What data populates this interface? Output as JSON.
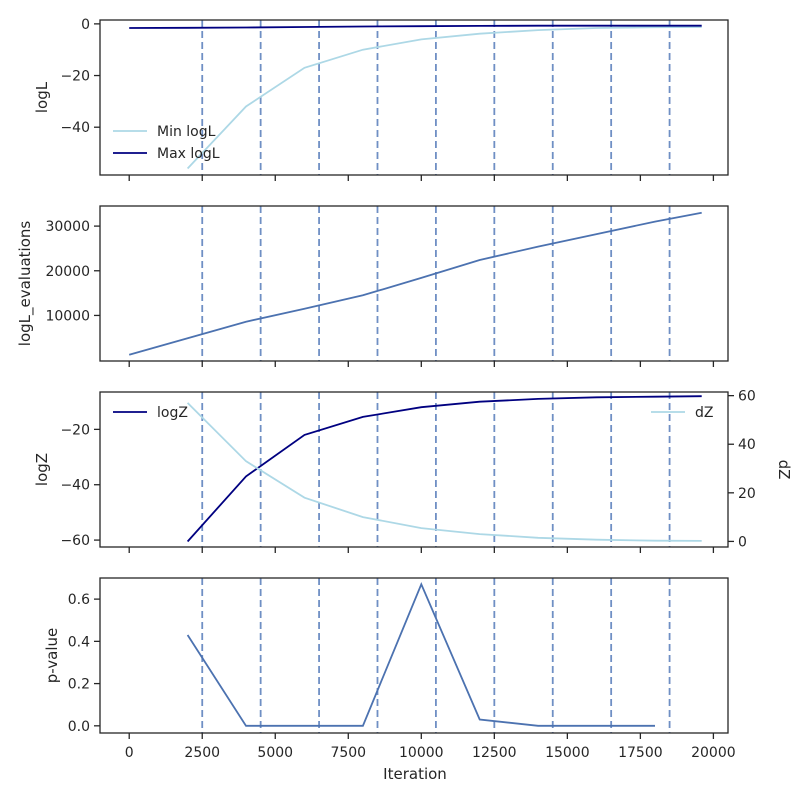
{
  "chart_data": [
    {
      "type": "line",
      "xlim": [
        -1000,
        20500
      ],
      "ylim": [
        -58.5,
        1.5
      ],
      "ylabel": "logL",
      "yticks": [
        0,
        -20,
        -40
      ],
      "vlines": [
        2500,
        4500,
        6500,
        8500,
        10500,
        12500,
        14500,
        16500,
        18500
      ],
      "legend": "left",
      "series": [
        {
          "name": "Min logL",
          "color": "#add8e6",
          "x": [
            2000,
            4000,
            6000,
            8000,
            10000,
            12000,
            14000,
            16000,
            18000,
            19600
          ],
          "y": [
            -56,
            -32,
            -17,
            -10,
            -6,
            -3.8,
            -2.4,
            -1.6,
            -1.3,
            -1.2
          ]
        },
        {
          "name": "Max logL",
          "color": "#000080",
          "x": [
            0,
            2000,
            4000,
            6000,
            8000,
            10000,
            12000,
            14000,
            16000,
            18000,
            19600
          ],
          "y": [
            -1.6,
            -1.5,
            -1.4,
            -1.2,
            -1.0,
            -0.9,
            -0.8,
            -0.7,
            -0.7,
            -0.7,
            -0.7
          ]
        }
      ]
    },
    {
      "type": "line",
      "xlim": [
        -1000,
        20500
      ],
      "ylim": [
        -200,
        34500
      ],
      "ylabel": "logL_evaluations",
      "yticks": [
        10000,
        20000,
        30000
      ],
      "vlines": [
        2500,
        4500,
        6500,
        8500,
        10500,
        12500,
        14500,
        16500,
        18500
      ],
      "series": [
        {
          "name": "",
          "color": "#4c72b0",
          "x": [
            0,
            2000,
            4000,
            6000,
            8000,
            10000,
            12000,
            14000,
            16000,
            18000,
            19600
          ],
          "y": [
            1200,
            4900,
            8600,
            11500,
            14500,
            18400,
            22400,
            25400,
            28200,
            31000,
            33000
          ]
        }
      ]
    },
    {
      "type": "line",
      "xlim": [
        -1000,
        20500
      ],
      "ylim": [
        -62.5,
        -6.5
      ],
      "ylabel": "logZ",
      "yticks": [
        -20,
        -40,
        -60
      ],
      "y2lim": [
        -2.3,
        61.5
      ],
      "y2label": "dZ",
      "y2ticks": [
        0,
        20,
        40,
        60
      ],
      "vlines": [
        2500,
        4500,
        6500,
        8500,
        10500,
        12500,
        14500,
        16500,
        18500
      ],
      "series": [
        {
          "name": "logZ",
          "axis": "left",
          "color": "#000080",
          "x": [
            2000,
            4000,
            6000,
            8000,
            10000,
            12000,
            14000,
            16000,
            18000,
            19600
          ],
          "y": [
            -60.5,
            -37,
            -22,
            -15.5,
            -12,
            -10,
            -9,
            -8.4,
            -8.2,
            -8
          ]
        },
        {
          "name": "dZ",
          "axis": "right",
          "color": "#add8e6",
          "x": [
            2000,
            4000,
            6000,
            8000,
            10000,
            12000,
            14000,
            16000,
            18000,
            19600
          ],
          "y": [
            57,
            33,
            18,
            10,
            5.5,
            3,
            1.5,
            0.7,
            0.3,
            0.2
          ]
        }
      ]
    },
    {
      "type": "line",
      "xlim": [
        -1000,
        20500
      ],
      "ylim": [
        -0.034,
        0.7
      ],
      "ylabel": "p-value",
      "xlabel": "Iteration",
      "yticks": [
        0.0,
        0.2,
        0.4,
        0.6
      ],
      "ytick_labels": [
        "0.0",
        "0.2",
        "0.4",
        "0.6"
      ],
      "xticks": [
        0,
        2500,
        5000,
        7500,
        10000,
        12500,
        15000,
        17500,
        20000
      ],
      "vlines": [
        2500,
        4500,
        6500,
        8500,
        10500,
        12500,
        14500,
        16500,
        18500
      ],
      "series": [
        {
          "name": "",
          "color": "#4c72b0",
          "x": [
            2000,
            4000,
            6000,
            8000,
            10000,
            12000,
            14000,
            16000,
            18000
          ],
          "y": [
            0.43,
            0.0,
            0.0,
            0.0,
            0.67,
            0.03,
            0.0,
            0.0,
            0.0
          ]
        }
      ]
    }
  ]
}
